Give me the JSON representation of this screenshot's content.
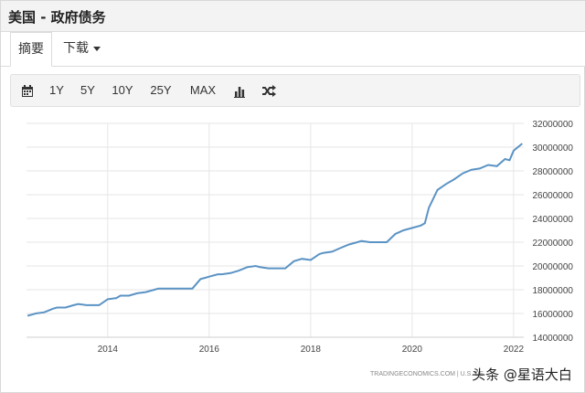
{
  "header": {
    "title": "美国 - 政府债务"
  },
  "tabs": [
    {
      "label": "摘要",
      "active": true
    },
    {
      "label": "下载",
      "active": false
    }
  ],
  "toolbar": {
    "calendar_icon": "calendar-icon",
    "ranges": [
      "1Y",
      "5Y",
      "10Y",
      "25Y",
      "MAX"
    ],
    "bar_chart_icon": "bar-chart-icon",
    "shuffle_icon": "shuffle-icon"
  },
  "chart_data": {
    "type": "line",
    "title": "",
    "xlabel": "",
    "ylabel": "",
    "color": "#5b93c4",
    "x_ticks": [
      "2014",
      "2016",
      "2018",
      "2020",
      "2022"
    ],
    "y_ticks": [
      "14000000",
      "16000000",
      "18000000",
      "20000000",
      "22000000",
      "24000000",
      "26000000",
      "28000000",
      "30000000",
      "32000000"
    ],
    "xlim": [
      2012.4,
      2022.2
    ],
    "ylim": [
      14000000,
      32000000
    ],
    "grid": true,
    "series": [
      {
        "x": [
          2012.42,
          2012.58,
          2012.75,
          2012.92,
          2013.0,
          2013.17,
          2013.33,
          2013.42,
          2013.58,
          2013.67,
          2013.83,
          2014.0,
          2014.17,
          2014.25,
          2014.42,
          2014.58,
          2014.75,
          2014.92,
          2015.0,
          2015.17,
          2015.33,
          2015.5,
          2015.67,
          2015.83,
          2015.92,
          2016.0,
          2016.17,
          2016.25,
          2016.42,
          2016.58,
          2016.75,
          2016.92,
          2017.0,
          2017.17,
          2017.33,
          2017.5,
          2017.67,
          2017.83,
          2018.0,
          2018.17,
          2018.25,
          2018.42,
          2018.58,
          2018.75,
          2018.92,
          2019.0,
          2019.17,
          2019.33,
          2019.5,
          2019.67,
          2019.83,
          2020.0,
          2020.17,
          2020.25,
          2020.33,
          2020.5,
          2020.67,
          2020.83,
          2021.0,
          2021.17,
          2021.33,
          2021.5,
          2021.67,
          2021.83,
          2021.92,
          2022.0,
          2022.17
        ],
        "y": [
          15800000,
          16000000,
          16100000,
          16400000,
          16500000,
          16500000,
          16700000,
          16800000,
          16700000,
          16700000,
          16700000,
          17200000,
          17300000,
          17500000,
          17500000,
          17700000,
          17800000,
          18000000,
          18100000,
          18100000,
          18100000,
          18100000,
          18100000,
          18900000,
          19000000,
          19100000,
          19300000,
          19300000,
          19400000,
          19600000,
          19900000,
          20000000,
          19900000,
          19800000,
          19800000,
          19800000,
          20400000,
          20600000,
          20500000,
          21000000,
          21100000,
          21200000,
          21500000,
          21800000,
          22000000,
          22100000,
          22000000,
          22000000,
          22000000,
          22700000,
          23000000,
          23200000,
          23400000,
          23600000,
          24900000,
          26400000,
          26900000,
          27300000,
          27800000,
          28100000,
          28200000,
          28500000,
          28400000,
          29000000,
          28900000,
          29700000,
          30300000
        ]
      }
    ]
  },
  "source": "TRADINGECONOMICS.COM  |  U.S. DE",
  "watermark": "头条 @星语大白"
}
